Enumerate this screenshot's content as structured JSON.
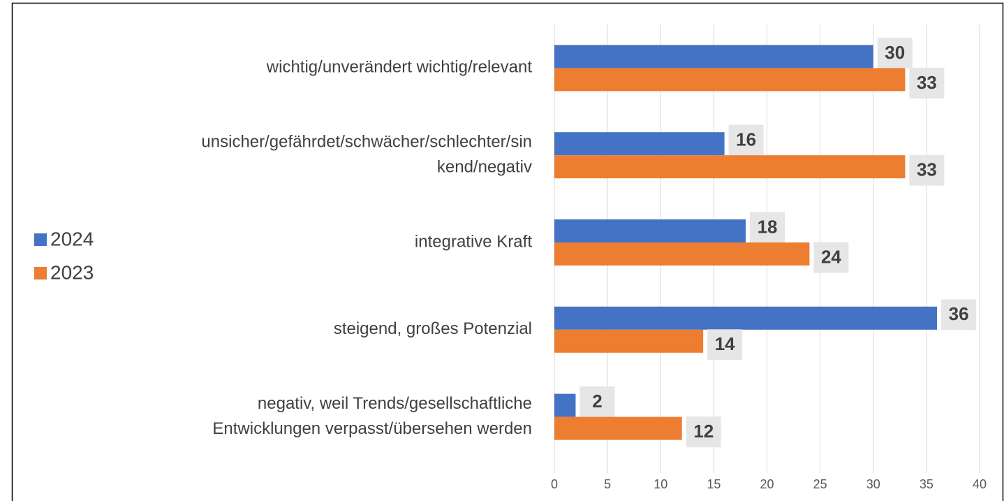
{
  "chart_data": {
    "type": "bar",
    "orientation": "horizontal",
    "categories": [
      [
        "wichtig/unverändert wichtig/relevant"
      ],
      [
        "unsicher/gefährdet/schwächer/schlechter/sin",
        "kend/negativ"
      ],
      [
        "integrative Kraft"
      ],
      [
        "steigend, großes Potenzial"
      ],
      [
        "negativ, weil Trends/gesellschaftliche",
        "Entwicklungen verpasst/übersehen werden"
      ]
    ],
    "series": [
      {
        "name": "2024",
        "color": "#4472c4",
        "values": [
          30,
          16,
          18,
          36,
          2
        ]
      },
      {
        "name": "2023",
        "color": "#ed7d31",
        "values": [
          33,
          33,
          24,
          14,
          12
        ]
      }
    ],
    "xlim": [
      0,
      40
    ],
    "xticks": [
      0,
      5,
      10,
      15,
      20,
      25,
      30,
      35,
      40
    ],
    "grid": true,
    "legend": "left"
  }
}
